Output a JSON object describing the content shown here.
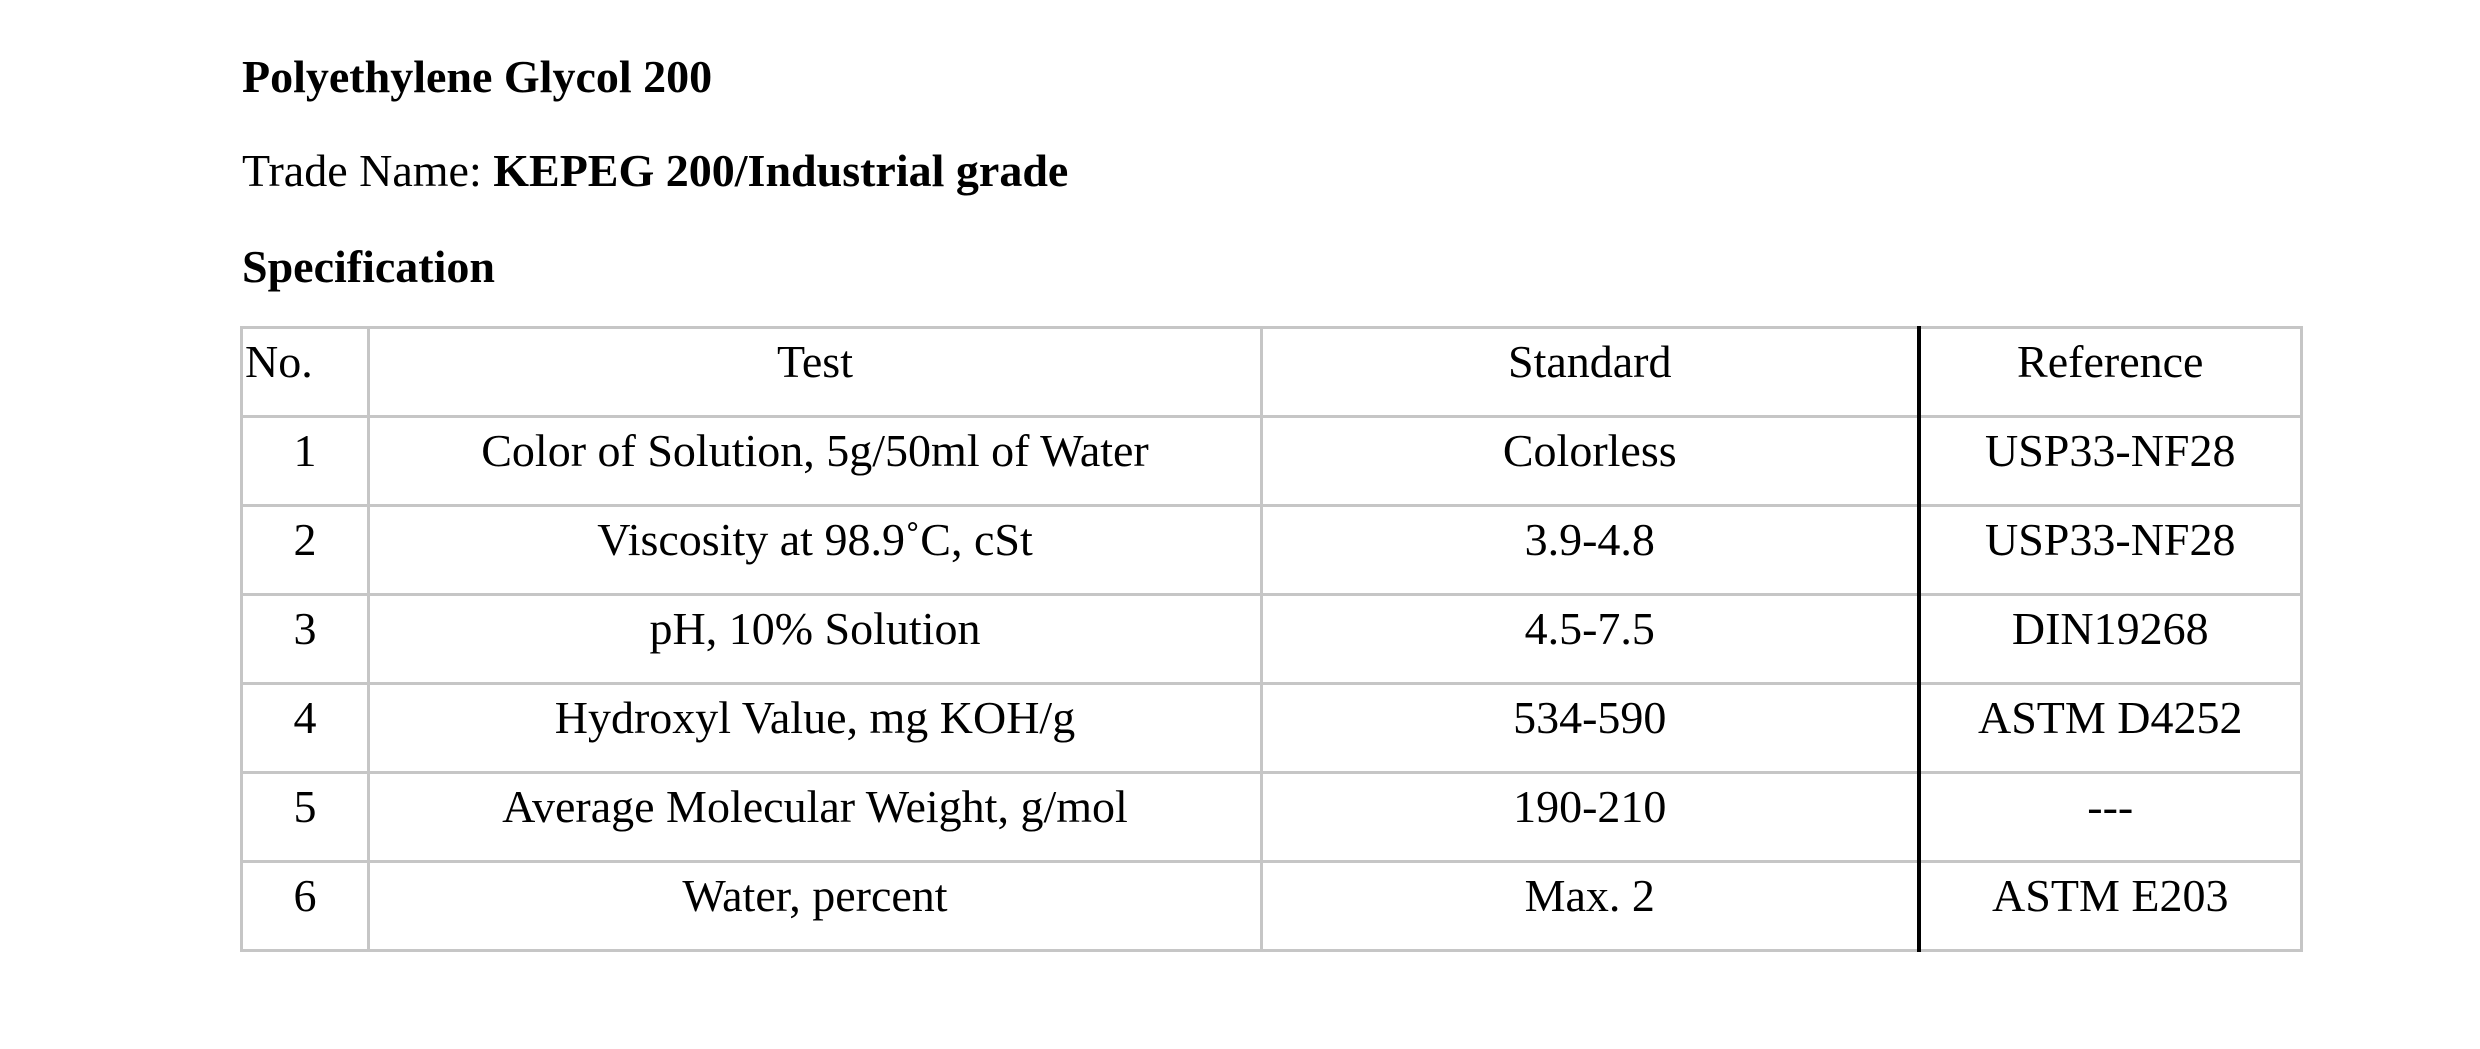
{
  "document": {
    "title": "Polyethylene Glycol 200",
    "trade_name_label": "Trade Name: ",
    "trade_name_value": "KEPEG 200/Industrial grade",
    "section_heading": "Specification"
  },
  "table": {
    "headers": {
      "no": "No.",
      "test": "Test",
      "standard": "Standard",
      "reference": "Reference"
    },
    "rows": [
      {
        "no": "1",
        "test": "Color of Solution, 5g/50ml of Water",
        "standard": "Colorless",
        "reference": "USP33-NF28"
      },
      {
        "no": "2",
        "test": "Viscosity at 98.9˚C, cSt",
        "standard": "3.9-4.8",
        "reference": "USP33-NF28"
      },
      {
        "no": "3",
        "test": "pH, 10% Solution",
        "standard": "4.5-7.5",
        "reference": "DIN19268"
      },
      {
        "no": "4",
        "test": "Hydroxyl Value, mg KOH/g",
        "standard": "534-590",
        "reference": "ASTM D4252"
      },
      {
        "no": "5",
        "test": "Average Molecular Weight, g/mol",
        "standard": "190-210",
        "reference": "---"
      },
      {
        "no": "6",
        "test": "Water, percent",
        "standard": "Max. 2",
        "reference": "ASTM E203"
      }
    ]
  },
  "colors": {
    "text": "#000000",
    "grid": "#c6c6c6",
    "divider": "#000000"
  }
}
